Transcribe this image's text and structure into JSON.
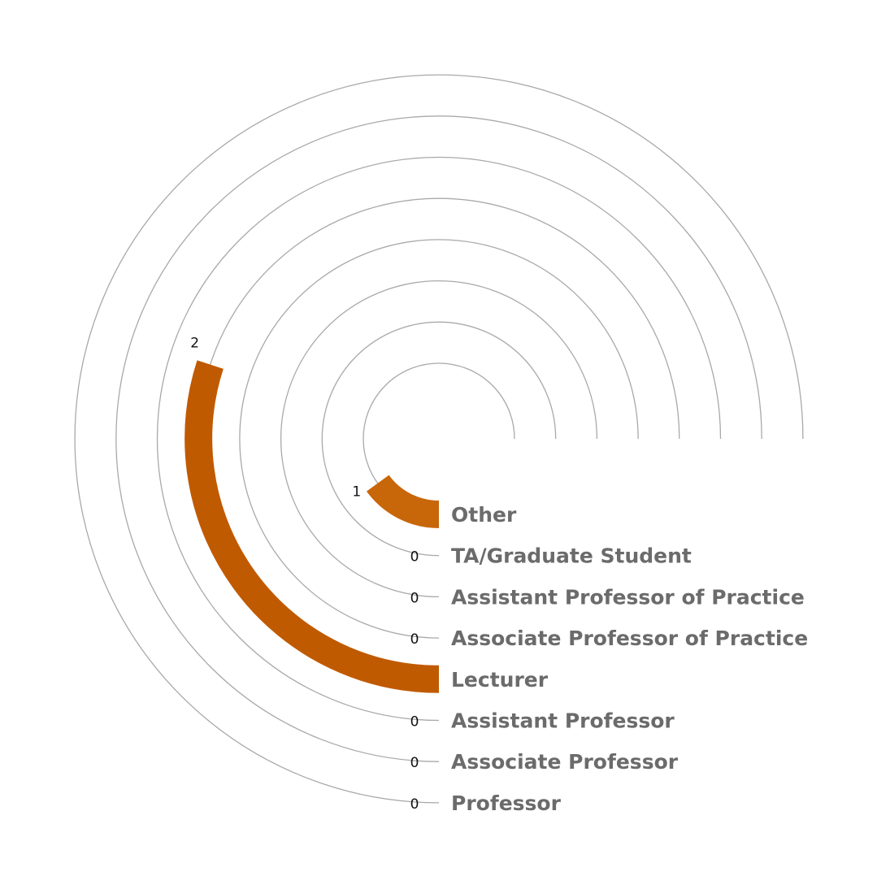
{
  "chart_data": {
    "type": "radial-bar",
    "title": "",
    "max_value": 5,
    "bar_color": "#c05a00",
    "bar_color_light": "#c8660a",
    "track_color": "#a9a9a9",
    "label_color": "#6b6b6b",
    "categories": [
      "Other",
      "TA/Graduate Student",
      "Assistant Professor of Practice",
      "Associate Professor of Practice",
      "Lecturer",
      "Assistant Professor",
      "Associate Professor",
      "Professor"
    ],
    "values": [
      1,
      0,
      0,
      0,
      2,
      0,
      0,
      0
    ]
  }
}
